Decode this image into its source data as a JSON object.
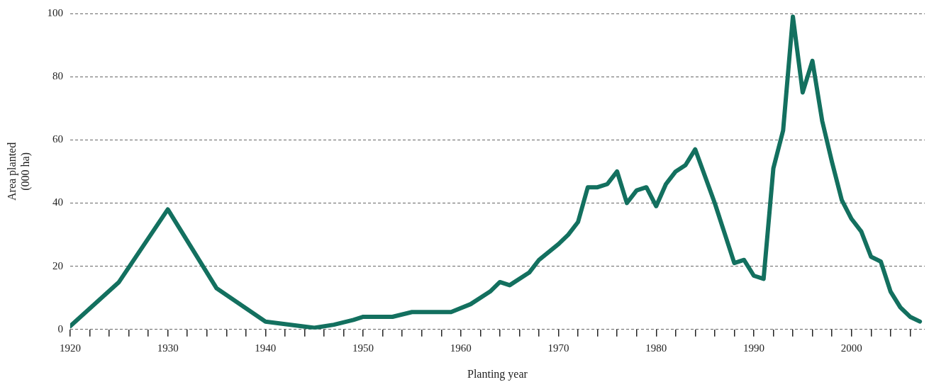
{
  "chart_data": {
    "type": "line",
    "xlabel": "Planting year",
    "ylabel": "Area planted\n(000 ha)",
    "x": [
      1920,
      1925,
      1930,
      1935,
      1940,
      1945,
      1947,
      1949,
      1950,
      1953,
      1955,
      1959,
      1961,
      1963,
      1964,
      1965,
      1967,
      1968,
      1970,
      1971,
      1972,
      1973,
      1974,
      1975,
      1976,
      1977,
      1978,
      1979,
      1980,
      1981,
      1982,
      1983,
      1984,
      1986,
      1988,
      1989,
      1990,
      1991,
      1992,
      1993,
      1994,
      1995,
      1996,
      1997,
      1998,
      1999,
      2000,
      2001,
      2002,
      2003,
      2004,
      2005,
      2006,
      2007
    ],
    "series": [
      {
        "color": "#13705f",
        "values": [
          1,
          15,
          38,
          13,
          2.5,
          0.5,
          1.5,
          3,
          4,
          4,
          5.5,
          5.5,
          8,
          12,
          15,
          14,
          18,
          22,
          27,
          30,
          34,
          45,
          45,
          46,
          50,
          40,
          44,
          45,
          39,
          46,
          50,
          52,
          57,
          40,
          21,
          22,
          17,
          16,
          51,
          63,
          99,
          75,
          85,
          66,
          53,
          41,
          35,
          31,
          23,
          21.5,
          12,
          7,
          4,
          2.5
        ]
      }
    ],
    "xlim": [
      1920,
      2007.5
    ],
    "xticks": [
      1920,
      {
        "value": 1922,
        "label": null
      },
      {
        "value": 1924,
        "label": null
      },
      {
        "value": 1926,
        "label": null
      },
      {
        "value": 1928,
        "label": null
      },
      1930,
      {
        "value": 1932,
        "label": null
      },
      {
        "value": 1934,
        "label": null
      },
      {
        "value": 1936,
        "label": null
      },
      {
        "value": 1938,
        "label": null
      },
      1940,
      {
        "value": 1942,
        "label": null
      },
      {
        "value": 1944,
        "label": null
      },
      {
        "value": 1946,
        "label": null
      },
      {
        "value": 1948,
        "label": null
      },
      1950,
      {
        "value": 1952,
        "label": null
      },
      {
        "value": 1954,
        "label": null
      },
      {
        "value": 1956,
        "label": null
      },
      {
        "value": 1958,
        "label": null
      },
      1960,
      {
        "value": 1962,
        "label": null
      },
      {
        "value": 1964,
        "label": null
      },
      {
        "value": 1966,
        "label": null
      },
      {
        "value": 1968,
        "label": null
      },
      1970,
      {
        "value": 1972,
        "label": null
      },
      {
        "value": 1974,
        "label": null
      },
      {
        "value": 1976,
        "label": null
      },
      {
        "value": 1978,
        "label": null
      },
      1980,
      {
        "value": 1982,
        "label": null
      },
      {
        "value": 1984,
        "label": null
      },
      {
        "value": 1986,
        "label": null
      },
      {
        "value": 1988,
        "label": null
      },
      1990,
      {
        "value": 1992,
        "label": null
      },
      {
        "value": 1994,
        "label": null
      },
      {
        "value": 1996,
        "label": null
      },
      {
        "value": 1998,
        "label": null
      },
      2000,
      {
        "value": 2002,
        "label": null
      },
      {
        "value": 2004,
        "label": null
      },
      {
        "value": 2006,
        "label": null
      }
    ],
    "ylim": [
      0,
      100
    ],
    "yticks": [
      0,
      20,
      40,
      60,
      80,
      100
    ],
    "grid": "y",
    "legend": false,
    "marker": "none",
    "line_style": "solid"
  }
}
